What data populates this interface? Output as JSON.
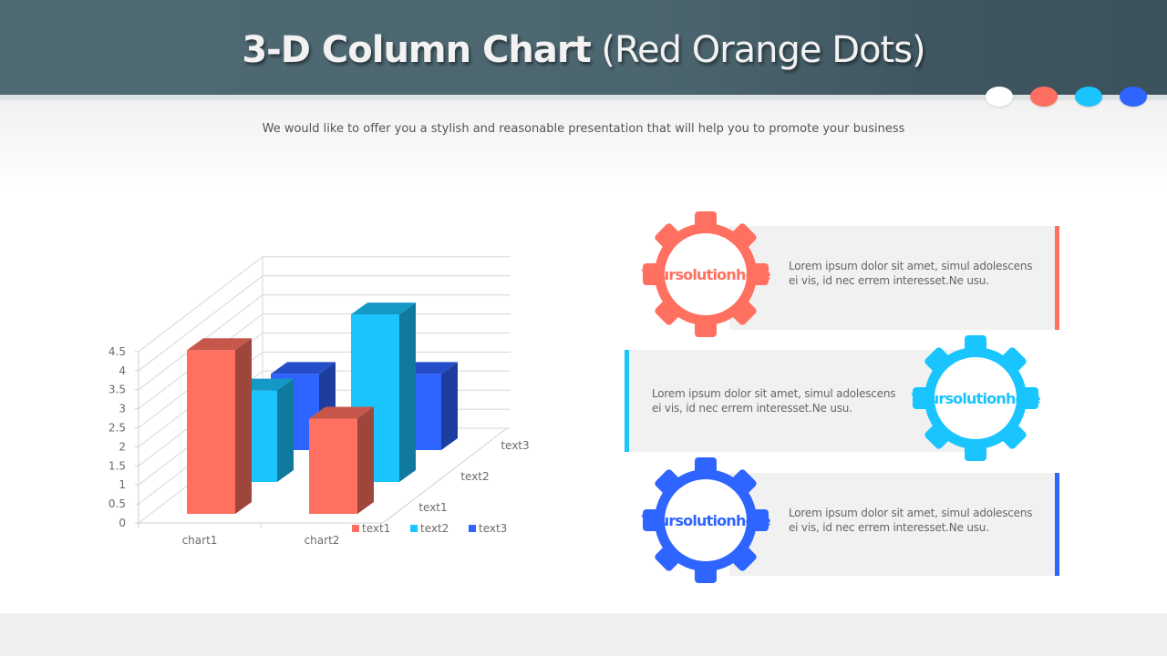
{
  "header": {
    "title_bold": "3-D Column Chart",
    "title_light": "(Red Orange Dots)",
    "subtitle": "We would like to offer you a stylish and reasonable presentation that will help you to promote your business",
    "dots": [
      "#ffffff",
      "#ff6f61",
      "#19c4ff",
      "#2e64ff"
    ]
  },
  "colors": {
    "red": "#ff7060",
    "cyan": "#19c4ff",
    "blue": "#2e64ff",
    "panel": "#f1f1f1",
    "header": "#4e6872"
  },
  "chart_data": {
    "type": "bar",
    "subtype": "3d-column",
    "title": "",
    "categories": [
      "chart1",
      "chart2"
    ],
    "depth_labels": [
      "text1",
      "text2",
      "text3"
    ],
    "series": [
      {
        "name": "text1",
        "color": "#ff7060",
        "values": [
          4.3,
          2.5
        ]
      },
      {
        "name": "text2",
        "color": "#19c4ff",
        "values": [
          2.4,
          4.4
        ]
      },
      {
        "name": "text3",
        "color": "#2e64ff",
        "values": [
          2.0,
          2.0
        ]
      }
    ],
    "yticks": [
      "0",
      "0.5",
      "1",
      "1.5",
      "2",
      "2.5",
      "3",
      "3.5",
      "4",
      "4.5"
    ],
    "ylim": [
      0,
      4.5
    ],
    "xlabel": "",
    "ylabel": "",
    "grid": true,
    "legend": {
      "position": "bottom-right",
      "entries": [
        "text1",
        "text2",
        "text3"
      ]
    }
  },
  "solutions": [
    {
      "gear_text": "Your solution here",
      "lines": [
        "Your",
        "solution",
        "here"
      ],
      "color": "#ff7060",
      "description_line1": "Lorem ipsum dolor sit amet, simul adolescens",
      "description_line2": "ei vis, id nec errem interesset.Ne usu."
    },
    {
      "gear_text": "Your solution here",
      "lines": [
        "Your",
        "solution",
        "here"
      ],
      "color": "#19c4ff",
      "description_line1": "Lorem ipsum dolor sit amet, simul adolescens",
      "description_line2": "ei vis, id nec errem interesset.Ne usu."
    },
    {
      "gear_text": "Your solution here",
      "lines": [
        "Your",
        "solution",
        "here"
      ],
      "color": "#2e64ff",
      "description_line1": "Lorem ipsum dolor sit amet, simul adolescens",
      "description_line2": "ei vis, id nec errem interesset.Ne usu."
    }
  ]
}
